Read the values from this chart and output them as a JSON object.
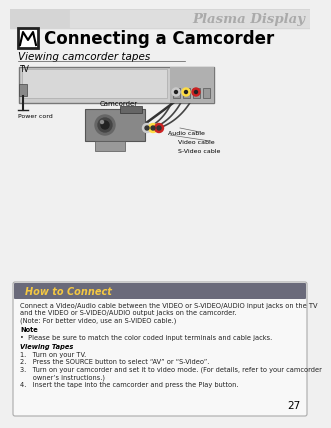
{
  "bg_color": "#f0f0f0",
  "header_bg_left": "#cccccc",
  "header_bg_right": "#e8e8e8",
  "header_text": "Plasma Display",
  "header_text_color": "#aaaaaa",
  "title_text": "Connecting a Camcorder",
  "section_title": "Viewing camcorder tapes",
  "tv_label": "TV",
  "power_cord_label": "Power cord",
  "camcorder_label": "Camcorder",
  "audio_cable_label": "Audio cable",
  "video_cable_label": "Video cable",
  "svideo_cable_label": "S-Video cable",
  "box_title_bar_color": "#6a6a7a",
  "box_title": "How to Connect",
  "box_title_color": "#f5c842",
  "box_bg": "#f8f8f8",
  "box_border": "#aaaaaa",
  "body_text_color": "#222222",
  "note_text": "•  Please be sure to match the color coded input terminals and cable jacks.",
  "body_text_line1": "Connect a Video/Audio cable between the VIDEO or S-VIDEO/AUDIO input jacks on the TV",
  "body_text_line2": "and the VIDEO or S-VIDEO/AUDIO output jacks on the camcorder.",
  "body_text_line3": "(Note: For better video, use an S-VIDEO cable.)",
  "step1": "1.   Turn on your TV.",
  "step2": "2.   Press the SOURCE button to select “AV” or “S-Video”.",
  "step3a": "3.   Turn on your camcorder and set it to video mode. (For details, refer to your camcorder",
  "step3b": "      owner’s instructions.)",
  "step4": "4.   Insert the tape into the camcorder and press the Play button.",
  "page_number": "27"
}
